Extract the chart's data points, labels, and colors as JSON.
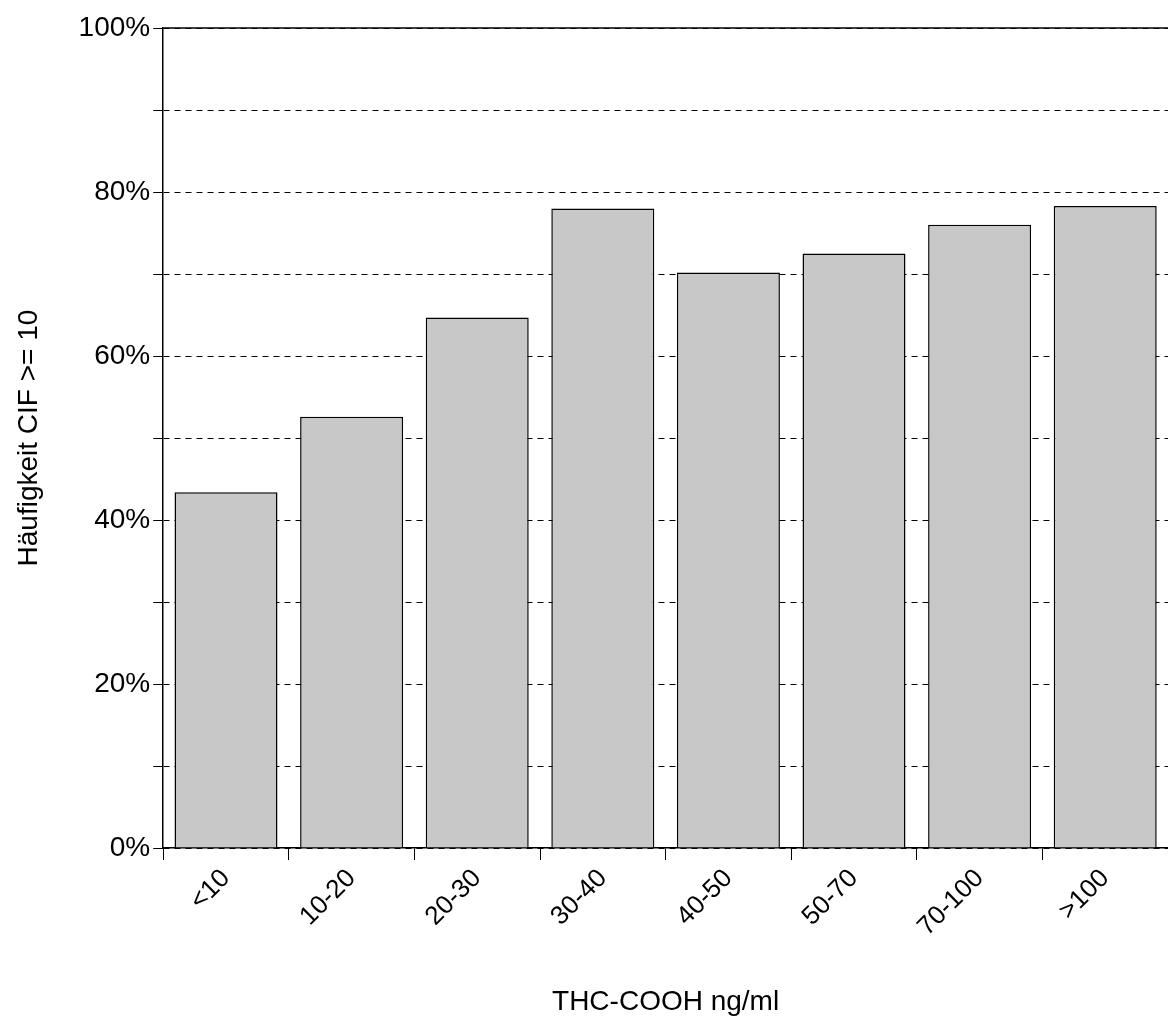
{
  "chart_data": {
    "type": "bar",
    "xlabel": "THC-COOH ng/ml",
    "ylabel": "Häufigkeit CIF >= 10",
    "categories": [
      "<10",
      "10-20",
      "20-30",
      "30-40",
      "40-50",
      "50-70",
      "70-100",
      ">100"
    ],
    "values": [
      43.4,
      52.6,
      64.7,
      78.0,
      70.2,
      72.5,
      76.0,
      78.3
    ],
    "color": "#c8c8c8",
    "ylim": [
      0,
      100
    ],
    "yticks": [
      {
        "value": 0,
        "label": "0%"
      },
      {
        "value": 10,
        "label": null
      },
      {
        "value": 20,
        "label": "20%"
      },
      {
        "value": 30,
        "label": null
      },
      {
        "value": 40,
        "label": "40%"
      },
      {
        "value": 50,
        "label": null
      },
      {
        "value": 60,
        "label": "60%"
      },
      {
        "value": 70,
        "label": null
      },
      {
        "value": 80,
        "label": "80%"
      },
      {
        "value": 90,
        "label": null
      },
      {
        "value": 100,
        "label": "100%"
      }
    ],
    "grid": "y",
    "legend": false
  }
}
